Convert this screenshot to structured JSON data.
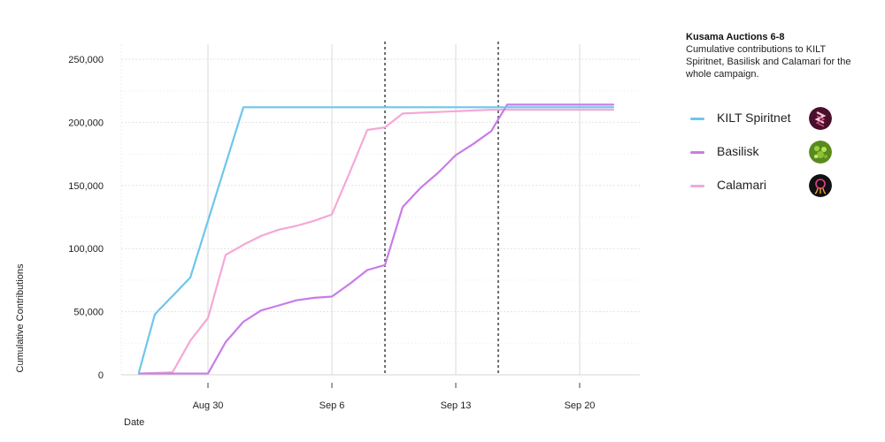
{
  "chart_data": {
    "type": "line",
    "title": "Kusama Auctions 6-8",
    "subtitle": "Cumulative contributions to KILT Spiritnet, Basilisk and Calamari for the whole campaign.",
    "xlabel": "Date",
    "ylabel": "Cumulative Contributions",
    "x_ticks": [
      "Aug 30",
      "Sep 6",
      "Sep 13",
      "Sep 20"
    ],
    "x_tick_values": [
      0,
      7,
      14,
      21
    ],
    "xlim": [
      -3.9,
      23.5
    ],
    "ylim": [
      0,
      260000
    ],
    "y_ticks": [
      0,
      50000,
      100000,
      150000,
      200000,
      250000
    ],
    "y_tick_labels": [
      "0",
      "50,000",
      "100,000",
      "150,000",
      "200,000",
      "250,000"
    ],
    "grid": true,
    "vlines": [
      10,
      16.4
    ],
    "legend_position": "right",
    "series": [
      {
        "name": "KILT Spiritnet",
        "color": "#6ec6ec",
        "x": [
          -3.9,
          -3,
          -1,
          2,
          22.9
        ],
        "y": [
          2000,
          48000,
          77000,
          212000,
          212000
        ]
      },
      {
        "name": "Basilisk",
        "color": "#c87ce8",
        "x": [
          -3.9,
          -2,
          0,
          1,
          2,
          3,
          4,
          5,
          6,
          7,
          8,
          9,
          10,
          11,
          12,
          13,
          14,
          15,
          16,
          16.9,
          22.9
        ],
        "y": [
          1000,
          1000,
          1000,
          26000,
          42000,
          51000,
          55000,
          59000,
          61000,
          62000,
          72000,
          83000,
          87000,
          133000,
          148000,
          160000,
          174000,
          183000,
          193000,
          214000,
          214000
        ]
      },
      {
        "name": "Calamari",
        "color": "#f5a8d6",
        "x": [
          -3.9,
          -2,
          -1,
          0,
          1,
          2,
          3,
          4,
          5,
          6,
          7,
          8,
          9,
          10,
          11,
          16,
          22.9
        ],
        "y": [
          1000,
          2000,
          27000,
          45000,
          95000,
          103000,
          110000,
          115000,
          118000,
          122000,
          127000,
          160000,
          194000,
          196000,
          207000,
          210000,
          210000
        ]
      }
    ]
  }
}
